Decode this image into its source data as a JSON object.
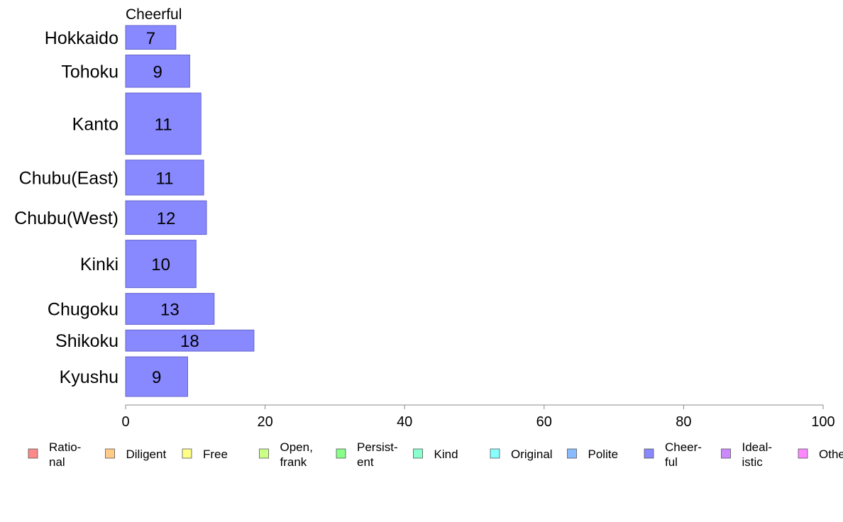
{
  "chart_data": {
    "type": "bar",
    "orientation": "horizontal",
    "title": "Cheerful",
    "series_name": "Cheer-\nful",
    "categories": [
      "Hokkaido",
      "Tohoku",
      "Kanto",
      "Chubu(East)",
      "Chubu(West)",
      "Kinki",
      "Chugoku",
      "Shikoku",
      "Kyushu"
    ],
    "values": [
      7.2,
      9.2,
      10.8,
      11.2,
      11.6,
      10.1,
      12.7,
      18.4,
      8.9
    ],
    "value_labels": [
      "7",
      "9",
      "11",
      "11",
      "12",
      "10",
      "13",
      "18",
      "9"
    ],
    "bar_weights": [
      3.6,
      4.9,
      9.3,
      5.3,
      5.1,
      7.2,
      4.7,
      3.2,
      6.0
    ],
    "xlim": [
      0,
      100
    ],
    "x_ticks": [
      0,
      20,
      40,
      60,
      80,
      100
    ],
    "x_tick_labels": [
      "0",
      "20",
      "40",
      "60",
      "80",
      "100"
    ],
    "grid": false,
    "bar_color": "#8888ff",
    "bar_edge_color": "#6666cc",
    "axis_color": "#888888",
    "legend_position": "bottom",
    "legend": [
      {
        "label": "Ratio-\nnal",
        "color": "#ff8888"
      },
      {
        "label": "Diligent",
        "color": "#ffcc88"
      },
      {
        "label": "Free",
        "color": "#ffff88"
      },
      {
        "label": "Open,\nfrank",
        "color": "#ccff88"
      },
      {
        "label": "Persist-\nent",
        "color": "#88ff88"
      },
      {
        "label": "Kind",
        "color": "#88ffcc"
      },
      {
        "label": "Original",
        "color": "#88ffff"
      },
      {
        "label": "Polite",
        "color": "#88bbff"
      },
      {
        "label": "Cheer-\nful",
        "color": "#8888ff"
      },
      {
        "label": "Ideal-\nistic",
        "color": "#cc88ff"
      },
      {
        "label": "Other",
        "color": "#ff88ff"
      }
    ]
  }
}
